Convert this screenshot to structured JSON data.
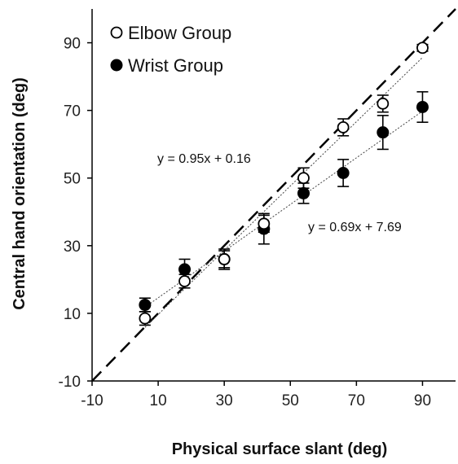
{
  "chart_data": {
    "type": "scatter",
    "xlabel": "Physical surface slant (deg)",
    "ylabel": "Central hand orientation (deg)",
    "xlim": [
      -10,
      100
    ],
    "ylim": [
      -10,
      100
    ],
    "xticks": [
      -10,
      10,
      30,
      50,
      70,
      90
    ],
    "yticks": [
      -10,
      10,
      30,
      50,
      70,
      90
    ],
    "xtick_labels": [
      "-10",
      "10",
      "30",
      "50",
      "70",
      "90"
    ],
    "ytick_labels": [
      "-10",
      "10",
      "30",
      "50",
      "70",
      "90"
    ],
    "grid": false,
    "legend_position": "top-left",
    "identity_line": {
      "style": "dashed",
      "from": [
        -10,
        -10
      ],
      "to": [
        100,
        100
      ]
    },
    "series": [
      {
        "name": "Elbow Group",
        "marker": "open-circle",
        "x": [
          6,
          18,
          30,
          42,
          54,
          66,
          78,
          90
        ],
        "y": [
          8.5,
          19.5,
          26,
          36.5,
          50,
          65,
          72,
          88.5
        ],
        "err": [
          2,
          2,
          2.5,
          2.5,
          3,
          2.5,
          2.5,
          1
        ],
        "fit": {
          "slope": 0.95,
          "intercept": 0.16,
          "label": "y = 0.95x + 0.16"
        }
      },
      {
        "name": "Wrist Group",
        "marker": "filled-circle",
        "x": [
          6,
          18,
          30,
          42,
          54,
          66,
          78,
          90
        ],
        "y": [
          12.5,
          23,
          26,
          35,
          45.5,
          51.5,
          63.5,
          71
        ],
        "err": [
          2,
          3,
          3,
          4.5,
          3,
          4,
          5,
          4.5
        ],
        "fit": {
          "slope": 0.69,
          "intercept": 7.69,
          "label": "y = 0.69x + 7.69"
        }
      }
    ]
  }
}
